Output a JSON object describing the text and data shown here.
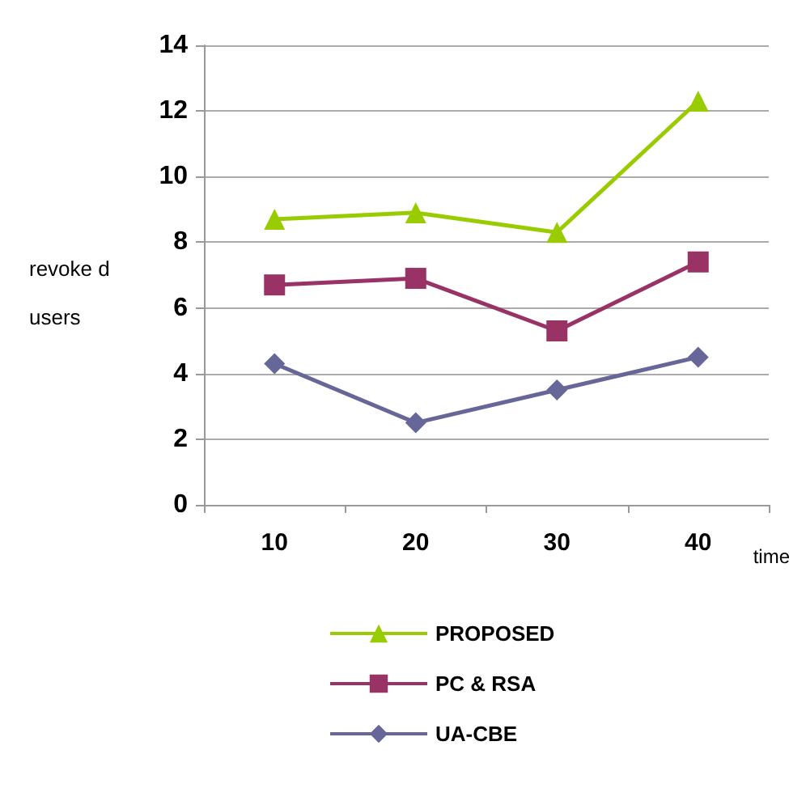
{
  "chart_data": {
    "type": "line",
    "categories": [
      "10",
      "20",
      "30",
      "40"
    ],
    "xlabel": "time",
    "ylabel": "revoke d users",
    "ylim": [
      0,
      14
    ],
    "yticks": [
      0,
      2,
      4,
      6,
      8,
      10,
      12,
      14
    ],
    "grid": "y",
    "legend": "bottom",
    "series": [
      {
        "name": "PROPOSED",
        "color": "#99cc00",
        "marker": "triangle",
        "values": [
          8.7,
          8.9,
          8.3,
          12.3
        ]
      },
      {
        "name": "PC & RSA",
        "color": "#993366",
        "marker": "square",
        "values": [
          6.7,
          6.9,
          5.3,
          7.4
        ]
      },
      {
        "name": "UA-CBE",
        "color": "#666699",
        "marker": "diamond",
        "values": [
          4.3,
          2.5,
          3.5,
          4.5
        ]
      }
    ]
  }
}
